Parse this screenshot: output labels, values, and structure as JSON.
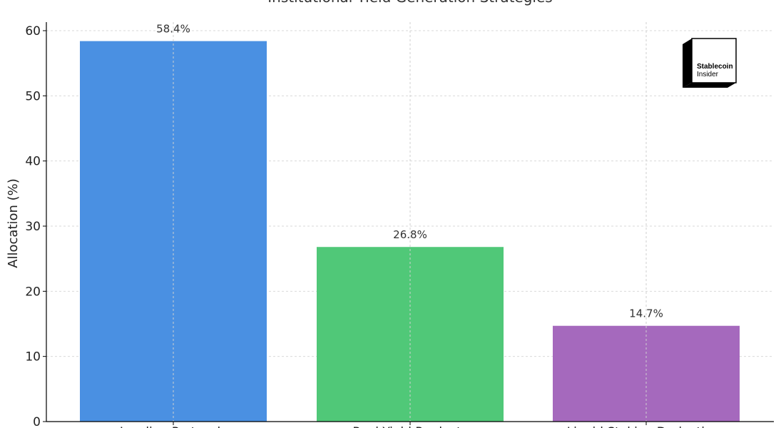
{
  "chart_data": {
    "type": "bar",
    "title": "Institutional Yield Generation Strategies",
    "ylabel": "Allocation (%)",
    "xlabel": "",
    "ylim": [
      0,
      62
    ],
    "yticks": [
      0,
      10,
      20,
      30,
      40,
      50,
      60
    ],
    "grid": true,
    "categories": [
      "Lending Protocols",
      "Real Yield Products",
      "Liquid Staking Derivatives"
    ],
    "values": [
      58.4,
      26.8,
      14.7
    ],
    "data_labels": [
      "58.4%",
      "26.8%",
      "14.7%"
    ],
    "colors": [
      "#4a90e2",
      "#50c878",
      "#a569bd"
    ]
  },
  "logo": {
    "line1": "Stablecoin",
    "line2": "Insider"
  }
}
